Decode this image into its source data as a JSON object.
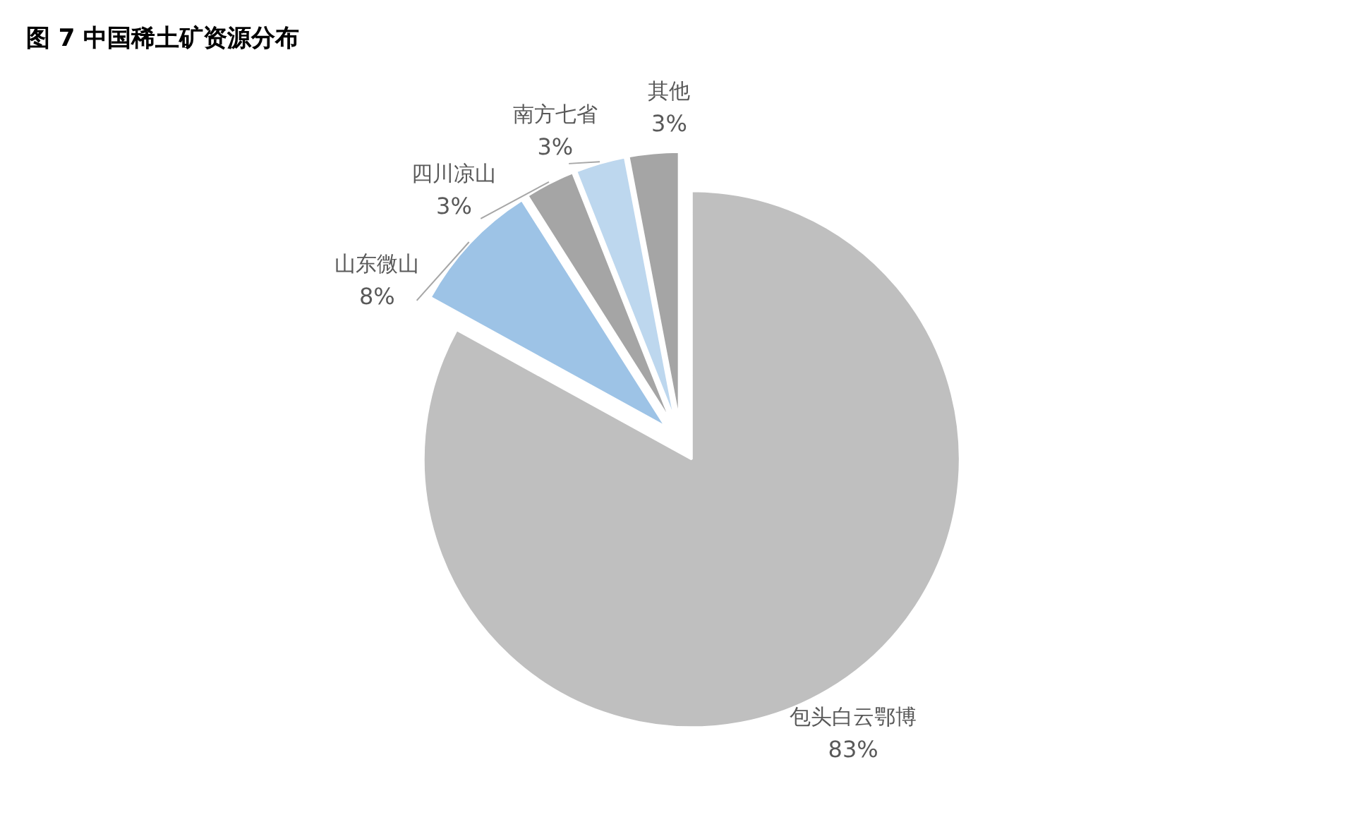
{
  "chart_data": {
    "type": "pie",
    "title": "图 7 中国稀土矿资源分布",
    "categories": [
      "包头白云鄂博",
      "山东微山",
      "四川凉山",
      "南方七省",
      "其他"
    ],
    "values": [
      83,
      8,
      3,
      3,
      3
    ],
    "colors": [
      "#bfbfbf",
      "#9dc3e6",
      "#a5a5a5",
      "#bdd7ee",
      "#a5a5a5"
    ],
    "value_labels": [
      "83%",
      "8%",
      "3%",
      "3%",
      "3%"
    ]
  }
}
